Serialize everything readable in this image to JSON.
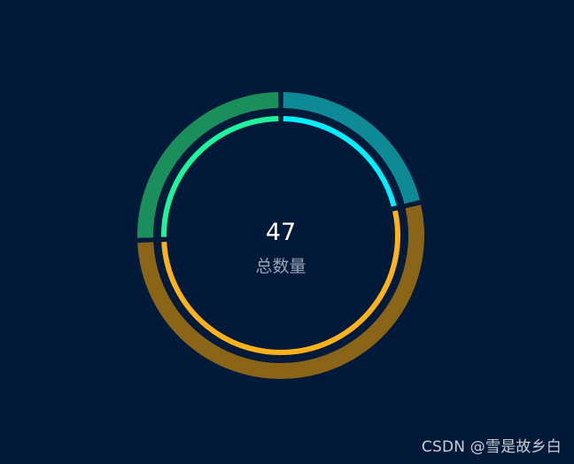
{
  "chart_data": {
    "type": "pie",
    "variant": "double-ring-donut",
    "title": "",
    "center_value": "47",
    "center_label": "总数量",
    "slices": [
      {
        "value": 10,
        "outer_color": "#0e8a96",
        "inner_color": "#00f0ff"
      },
      {
        "value": 25,
        "outer_color": "#8a6417",
        "inner_color": "#ffb11a"
      },
      {
        "value": 12,
        "outer_color": "#1a8f5c",
        "inner_color": "#1ef59a"
      }
    ],
    "start_angle": "top",
    "direction": "clockwise",
    "legend": "none"
  },
  "watermark": "CSDN @雪是故乡白",
  "colors": {
    "background": "#021a3a",
    "center_value": "#ffffff",
    "center_label": "#9aa3b2"
  }
}
